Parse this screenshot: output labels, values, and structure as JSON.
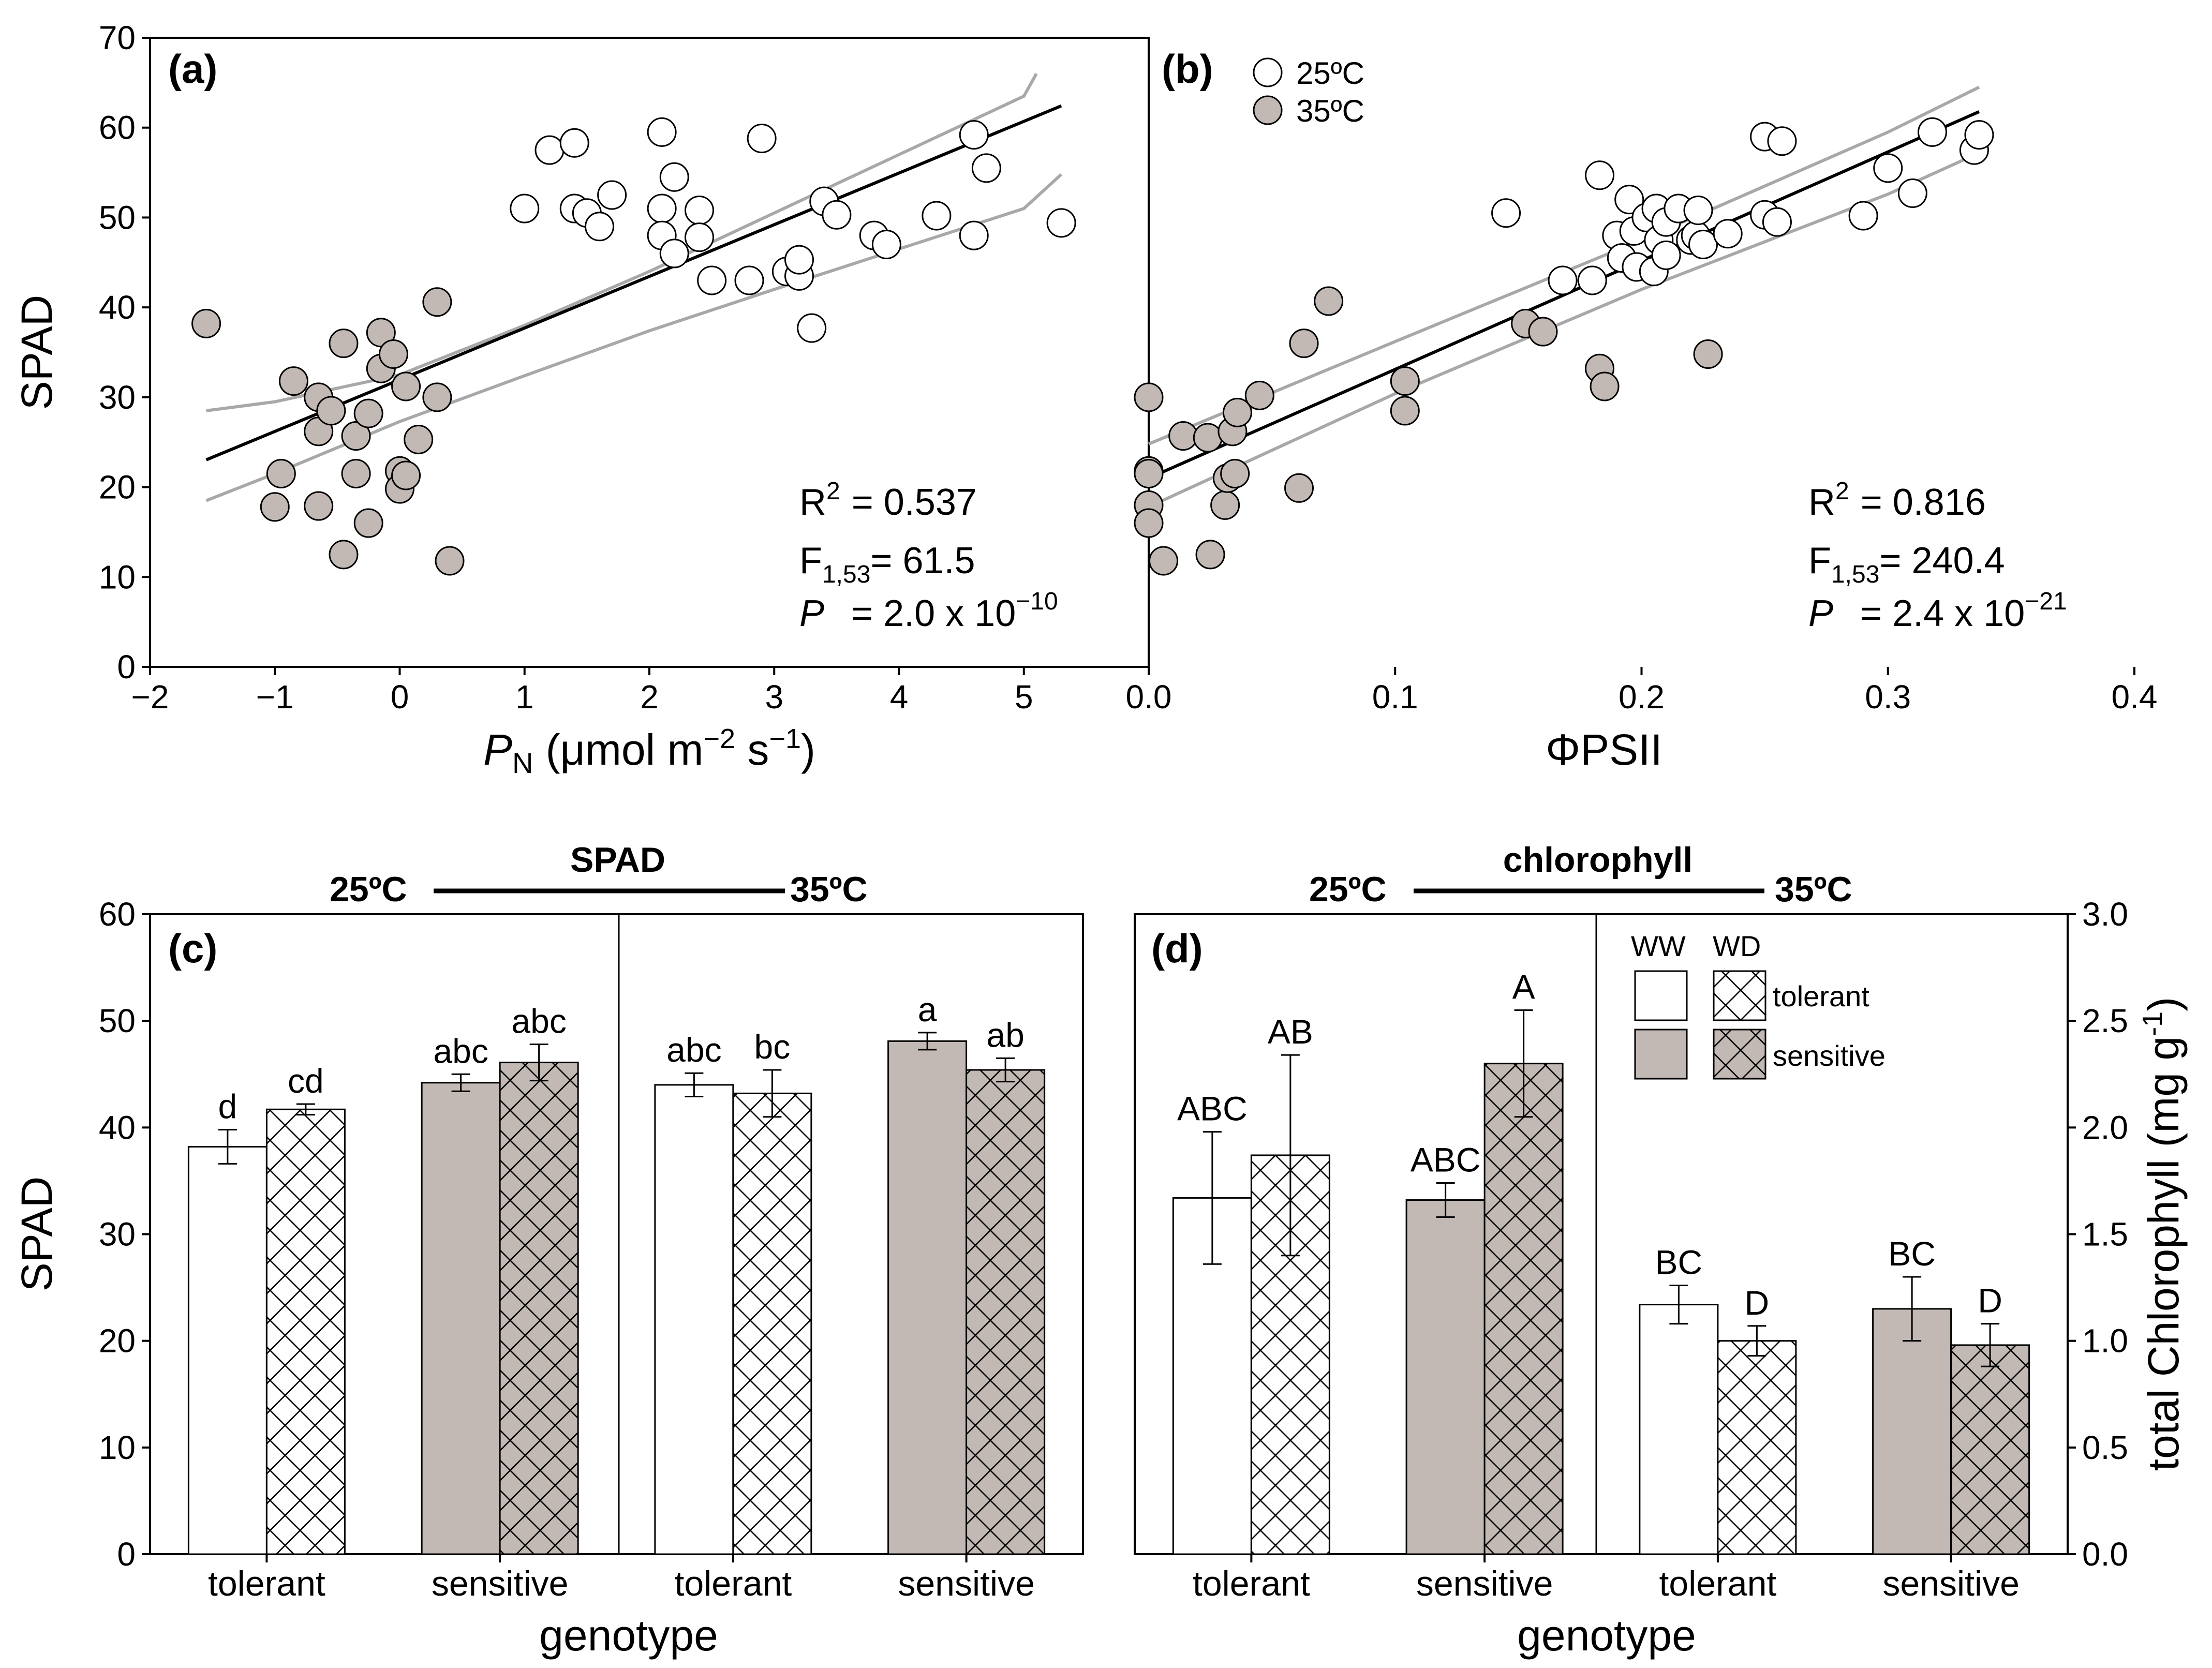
{
  "chart_data": [
    {
      "panel": "(a)",
      "type": "scatter",
      "xlabel_main": "P",
      "xlabel_sub": "N",
      "xlabel_unit_pre": "(μmol m",
      "xlabel_unit_exp1": "−2",
      "xlabel_unit_mid": " s",
      "xlabel_unit_exp2": "−1",
      "xlabel_unit_post": ")",
      "ylabel": "SPAD",
      "xlim": [
        -2,
        6
      ],
      "ylim": [
        0,
        70
      ],
      "xticks": [
        -2,
        -1,
        0,
        1,
        2,
        3,
        4,
        5
      ],
      "xtick_labels": [
        "−2",
        "−1",
        "0",
        "1",
        "2",
        "3",
        "4",
        "5"
      ],
      "yticks": [
        0,
        10,
        20,
        30,
        40,
        50,
        60,
        70
      ],
      "ytick_labels": [
        "0",
        "10",
        "20",
        "30",
        "40",
        "50",
        "60",
        "70"
      ],
      "points_25C": [
        [
          1.0,
          51
        ],
        [
          1.2,
          57.5
        ],
        [
          1.4,
          58.3
        ],
        [
          1.4,
          51
        ],
        [
          1.5,
          50.5
        ],
        [
          1.6,
          49
        ],
        [
          1.7,
          52.5
        ],
        [
          2.1,
          59.5
        ],
        [
          2.1,
          51
        ],
        [
          2.1,
          48
        ],
        [
          2.2,
          54.5
        ],
        [
          2.2,
          46
        ],
        [
          2.4,
          50.8
        ],
        [
          2.4,
          47.8
        ],
        [
          2.5,
          43
        ],
        [
          2.8,
          43
        ],
        [
          2.9,
          58.8
        ],
        [
          3.1,
          44
        ],
        [
          3.2,
          43.5
        ],
        [
          3.2,
          45.3
        ],
        [
          3.3,
          37.7
        ],
        [
          3.4,
          51.8
        ],
        [
          3.5,
          50.3
        ],
        [
          3.8,
          48
        ],
        [
          3.9,
          47
        ],
        [
          4.3,
          50.2
        ],
        [
          4.6,
          59.2
        ],
        [
          4.6,
          48
        ],
        [
          4.7,
          55.5
        ],
        [
          5.3,
          49.4
        ]
      ],
      "points_35C": [
        [
          -1.55,
          38.2
        ],
        [
          -1.0,
          17.8
        ],
        [
          -0.95,
          21.5
        ],
        [
          -0.85,
          31.8
        ],
        [
          -0.65,
          30
        ],
        [
          -0.65,
          26.2
        ],
        [
          -0.65,
          17.9
        ],
        [
          -0.55,
          28.5
        ],
        [
          -0.45,
          36
        ],
        [
          -0.45,
          12.5
        ],
        [
          -0.35,
          25.7
        ],
        [
          -0.35,
          21.5
        ],
        [
          -0.25,
          28.2
        ],
        [
          -0.25,
          16
        ],
        [
          -0.15,
          33.2
        ],
        [
          -0.15,
          37.2
        ],
        [
          -0.05,
          34.8
        ],
        [
          0.0,
          21.8
        ],
        [
          0.0,
          19.8
        ],
        [
          0.05,
          31.2
        ],
        [
          0.05,
          21.3
        ],
        [
          0.15,
          25.3
        ],
        [
          0.3,
          30
        ],
        [
          0.3,
          40.6
        ],
        [
          0.4,
          11.8
        ]
      ],
      "regression": {
        "intercept": 31.95,
        "slope": 5.75,
        "x_range": [
          -1.55,
          5.3
        ]
      },
      "ci_lower": [
        [
          -1.55,
          18.5
        ],
        [
          -1,
          21.5
        ],
        [
          0,
          27.3
        ],
        [
          1,
          32.4
        ],
        [
          2,
          37.4
        ],
        [
          3,
          42
        ],
        [
          4,
          46.5
        ],
        [
          5,
          51
        ],
        [
          5.3,
          54.8
        ]
      ],
      "ci_upper": [
        [
          -1.55,
          28.5
        ],
        [
          -1,
          29.5
        ],
        [
          0,
          32.5
        ],
        [
          1,
          38
        ],
        [
          2,
          44
        ],
        [
          3,
          50.5
        ],
        [
          4,
          57
        ],
        [
          5,
          63.5
        ],
        [
          5.1,
          66
        ]
      ],
      "stats": {
        "r2_label": "R",
        "r2_sup": "2",
        "r2_value": "= 0.537",
        "f_label": "F",
        "f_sub": "1,53",
        "f_value": "= 61.5",
        "p_label": "P",
        "p_value": "= 2.0 x 10",
        "p_exp": "−10"
      }
    },
    {
      "panel": "(b)",
      "type": "scatter",
      "xlabel": "ΦPSII",
      "xlim": [
        0,
        0.4
      ],
      "ylim": [
        0,
        70
      ],
      "xticks": [
        0,
        0.1,
        0.2,
        0.3,
        0.4
      ],
      "xtick_labels": [
        "0.0",
        "0.1",
        "0.2",
        "0.3",
        "0.4"
      ],
      "legend": [
        "25ºC",
        "35ºC"
      ],
      "points_25C": [
        [
          0.145,
          50.5
        ],
        [
          0.168,
          43
        ],
        [
          0.18,
          43
        ],
        [
          0.183,
          54.7
        ],
        [
          0.19,
          48
        ],
        [
          0.192,
          45.5
        ],
        [
          0.195,
          52
        ],
        [
          0.197,
          48.5
        ],
        [
          0.198,
          44.5
        ],
        [
          0.202,
          50
        ],
        [
          0.205,
          44
        ],
        [
          0.206,
          51
        ],
        [
          0.207,
          47.5
        ],
        [
          0.21,
          49.5
        ],
        [
          0.21,
          45.8
        ],
        [
          0.215,
          51
        ],
        [
          0.22,
          47.5
        ],
        [
          0.222,
          48
        ],
        [
          0.223,
          50.8
        ],
        [
          0.225,
          47
        ],
        [
          0.235,
          48.2
        ],
        [
          0.25,
          59
        ],
        [
          0.25,
          50.3
        ],
        [
          0.255,
          49.5
        ],
        [
          0.257,
          58.5
        ],
        [
          0.29,
          50.2
        ],
        [
          0.3,
          55.5
        ],
        [
          0.31,
          52.7
        ],
        [
          0.318,
          59.5
        ],
        [
          0.335,
          57.5
        ],
        [
          0.337,
          59.2
        ]
      ],
      "points_35C": [
        [
          0.0,
          30
        ],
        [
          0.0,
          21.8
        ],
        [
          0.0,
          21.5
        ],
        [
          0.0,
          18
        ],
        [
          0.0,
          16
        ],
        [
          0.006,
          11.8
        ],
        [
          0.014,
          25.7
        ],
        [
          0.024,
          25.5
        ],
        [
          0.025,
          12.5
        ],
        [
          0.031,
          18
        ],
        [
          0.032,
          21
        ],
        [
          0.035,
          21.5
        ],
        [
          0.034,
          26.2
        ],
        [
          0.036,
          28.3
        ],
        [
          0.045,
          30.2
        ],
        [
          0.061,
          19.9
        ],
        [
          0.063,
          36
        ],
        [
          0.073,
          40.7
        ],
        [
          0.104,
          31.8
        ],
        [
          0.104,
          28.5
        ],
        [
          0.153,
          38.2
        ],
        [
          0.16,
          37.3
        ],
        [
          0.183,
          33.2
        ],
        [
          0.185,
          31.2
        ],
        [
          0.227,
          34.8
        ]
      ],
      "regression": {
        "intercept": 21.0,
        "slope": 121.0,
        "x_range": [
          0,
          0.337
        ]
      },
      "ci_lower": [
        [
          0,
          17.8
        ],
        [
          0.1,
          30.4
        ],
        [
          0.2,
          42
        ],
        [
          0.3,
          52.6
        ],
        [
          0.337,
          57.2
        ]
      ],
      "ci_upper": [
        [
          0,
          24.8
        ],
        [
          0.1,
          36.2
        ],
        [
          0.2,
          47.5
        ],
        [
          0.3,
          59.5
        ],
        [
          0.337,
          64.5
        ]
      ],
      "stats": {
        "r2_label": "R",
        "r2_sup": "2",
        "r2_value": "= 0.816",
        "f_label": "F",
        "f_sub": "1,53",
        "f_value": "= 240.4",
        "p_label": "P",
        "p_value": "= 2.4 x 10",
        "p_exp": "−21"
      }
    },
    {
      "panel": "(c)",
      "type": "bar",
      "title": "SPAD",
      "temp_left": "25ºC",
      "temp_right": "35ºC",
      "ylabel": "SPAD",
      "xlabel": "genotype",
      "ylim": [
        0,
        60
      ],
      "yticks": [
        0,
        10,
        20,
        30,
        40,
        50,
        60
      ],
      "ytick_labels": [
        "0",
        "10",
        "20",
        "30",
        "40",
        "50",
        "60"
      ],
      "groups": [
        "tolerant",
        "sensitive",
        "tolerant",
        "sensitive"
      ],
      "bars": [
        {
          "group": 0,
          "treatment": "WW",
          "genotype": "tolerant",
          "value": 38.2,
          "err": 1.6,
          "label": "d"
        },
        {
          "group": 0,
          "treatment": "WD",
          "genotype": "tolerant",
          "value": 41.7,
          "err": 0.5,
          "label": "cd"
        },
        {
          "group": 1,
          "treatment": "WW",
          "genotype": "sensitive",
          "value": 44.2,
          "err": 0.8,
          "label": "abc"
        },
        {
          "group": 1,
          "treatment": "WD",
          "genotype": "sensitive",
          "value": 46.1,
          "err": 1.7,
          "label": "abc"
        },
        {
          "group": 2,
          "treatment": "WW",
          "genotype": "tolerant",
          "value": 44.0,
          "err": 1.1,
          "label": "abc"
        },
        {
          "group": 2,
          "treatment": "WD",
          "genotype": "tolerant",
          "value": 43.2,
          "err": 2.2,
          "label": "bc"
        },
        {
          "group": 3,
          "treatment": "WW",
          "genotype": "sensitive",
          "value": 48.1,
          "err": 0.8,
          "label": "a"
        },
        {
          "group": 3,
          "treatment": "WD",
          "genotype": "sensitive",
          "value": 45.4,
          "err": 1.1,
          "label": "ab"
        }
      ]
    },
    {
      "panel": "(d)",
      "type": "bar",
      "title": "chlorophyll",
      "temp_left": "25ºC",
      "temp_right": "35ºC",
      "ylabel": "total Chlorophyll (mg g",
      "ylabel_exp": "-1",
      "ylabel_close": ")",
      "xlabel": "genotype",
      "ylim": [
        0,
        3.0
      ],
      "yticks": [
        0,
        0.5,
        1.0,
        1.5,
        2.0,
        2.5,
        3.0
      ],
      "ytick_labels": [
        "0.0",
        "0.5",
        "1.0",
        "1.5",
        "2.0",
        "2.5",
        "3.0"
      ],
      "groups": [
        "tolerant",
        "sensitive",
        "tolerant",
        "sensitive"
      ],
      "legend_ww": "WW",
      "legend_wd": "WD",
      "legend_tolerant": "tolerant",
      "legend_sensitive": "sensitive",
      "bars": [
        {
          "group": 0,
          "treatment": "WW",
          "genotype": "tolerant",
          "value": 1.67,
          "err": 0.31,
          "label": "ABC"
        },
        {
          "group": 0,
          "treatment": "WD",
          "genotype": "tolerant",
          "value": 1.87,
          "err": 0.47,
          "label": "AB"
        },
        {
          "group": 1,
          "treatment": "WW",
          "genotype": "sensitive",
          "value": 1.66,
          "err": 0.08,
          "label": "ABC"
        },
        {
          "group": 1,
          "treatment": "WD",
          "genotype": "sensitive",
          "value": 2.3,
          "err": 0.25,
          "label": "A"
        },
        {
          "group": 2,
          "treatment": "WW",
          "genotype": "tolerant",
          "value": 1.17,
          "err": 0.09,
          "label": "BC"
        },
        {
          "group": 2,
          "treatment": "WD",
          "genotype": "tolerant",
          "value": 1.0,
          "err": 0.07,
          "label": "D"
        },
        {
          "group": 3,
          "treatment": "WW",
          "genotype": "sensitive",
          "value": 1.15,
          "err": 0.15,
          "label": "BC"
        },
        {
          "group": 3,
          "treatment": "WD",
          "genotype": "sensitive",
          "value": 0.98,
          "err": 0.1,
          "label": "D"
        }
      ]
    }
  ],
  "colors": {
    "grey_fill": "#c2b9b5",
    "ci_line": "#a8a8a8",
    "regression_line": "#000000",
    "white_fill": "#ffffff"
  }
}
